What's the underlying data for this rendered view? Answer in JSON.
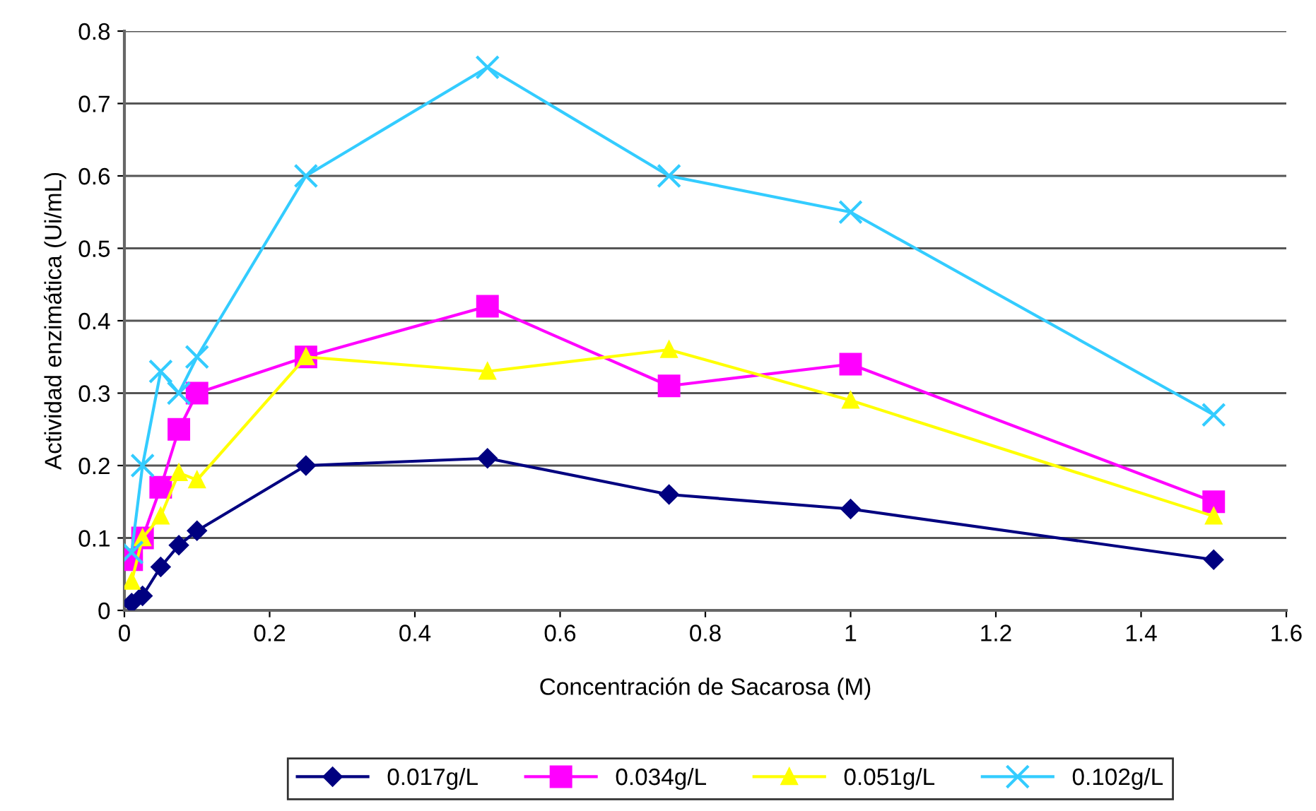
{
  "chart_data": {
    "type": "line",
    "xlabel": "Concentración de Sacarosa (M)",
    "ylabel": "Actividad enzimática (Ui/mL)",
    "x": [
      0.01,
      0.025,
      0.05,
      0.075,
      0.1,
      0.25,
      0.5,
      0.75,
      1,
      1.5
    ],
    "series": [
      {
        "name": "0.017g/L",
        "color": "#000080",
        "marker": "diamond",
        "values": [
          0.01,
          0.02,
          0.06,
          0.09,
          0.11,
          0.2,
          0.21,
          0.16,
          0.14,
          0.07
        ]
      },
      {
        "name": "0.034g/L",
        "color": "#ff00ff",
        "marker": "square",
        "values": [
          0.07,
          0.1,
          0.17,
          0.25,
          0.3,
          0.35,
          0.42,
          0.31,
          0.34,
          0.15
        ]
      },
      {
        "name": "0.051g/L",
        "color": "#ffff00",
        "marker": "triangle",
        "values": [
          0.04,
          0.1,
          0.13,
          0.19,
          0.18,
          0.35,
          0.33,
          0.36,
          0.29,
          0.13
        ]
      },
      {
        "name": "0.102g/L",
        "color": "#33ccff",
        "marker": "cross",
        "values": [
          0.08,
          0.2,
          0.33,
          0.3,
          0.35,
          0.6,
          0.75,
          0.6,
          0.55,
          0.27
        ]
      }
    ],
    "xlim": [
      0,
      1.6
    ],
    "xticks": [
      0,
      0.2,
      0.4,
      0.6,
      0.8,
      1,
      1.2,
      1.4,
      1.6
    ],
    "ylim": [
      0,
      0.8
    ],
    "yticks": [
      0,
      0.1,
      0.2,
      0.3,
      0.4,
      0.5,
      0.6,
      0.7,
      0.8
    ],
    "grid": "y",
    "legend": "bottom",
    "line_style": "solid"
  }
}
